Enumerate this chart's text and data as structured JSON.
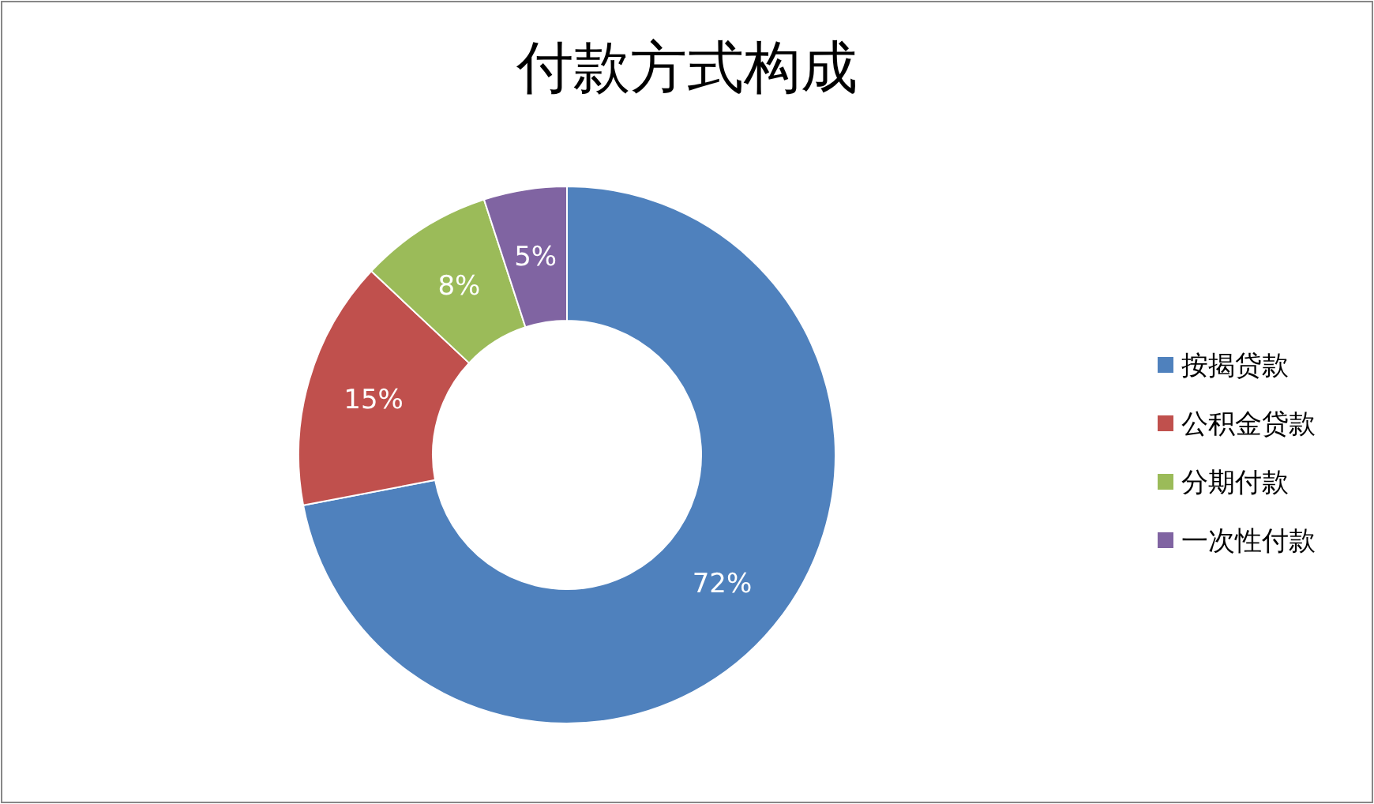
{
  "chart_data": {
    "type": "donut",
    "title": "付款方式构成",
    "categories": [
      "按揭贷款",
      "公积金贷款",
      "分期付款",
      "一次性付款"
    ],
    "values": [
      72,
      15,
      8,
      5
    ],
    "colors": [
      "#4f81bd",
      "#c0504d",
      "#9bbb59",
      "#8064a2"
    ],
    "value_labels": [
      "72%",
      "15%",
      "8%",
      "5%"
    ],
    "legend": "right"
  }
}
